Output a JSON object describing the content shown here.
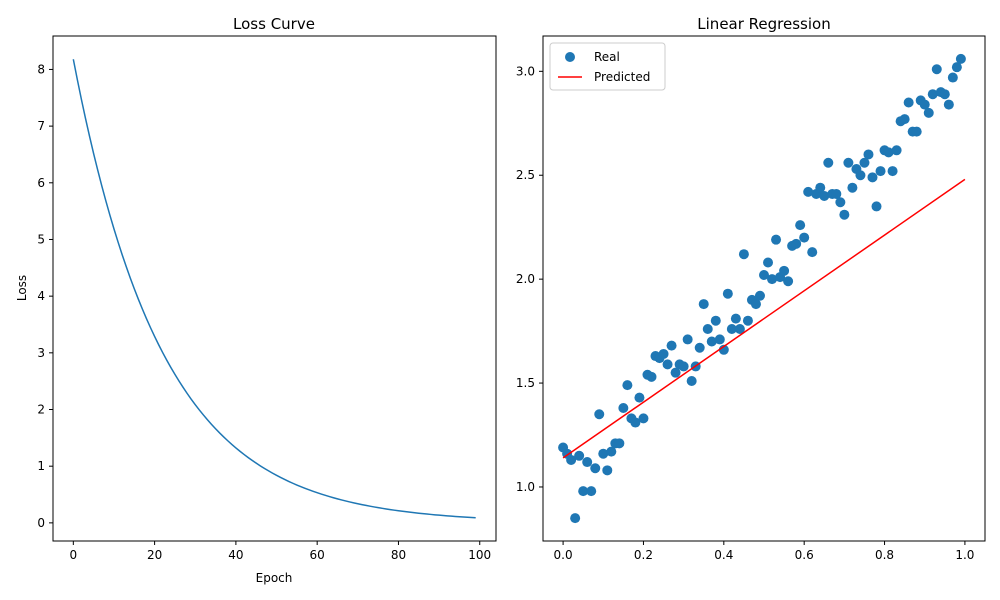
{
  "colors": {
    "series_blue": "#1f77b4",
    "predicted_red": "#ff0000",
    "axes": "#000000",
    "background": "#ffffff"
  },
  "chart_data": [
    {
      "type": "line",
      "title": "Loss Curve",
      "xlabel": "Epoch",
      "ylabel": "Loss",
      "xlim": [
        -5,
        104
      ],
      "ylim": [
        -0.32,
        8.59
      ],
      "xticks": [
        0,
        20,
        40,
        60,
        80,
        100
      ],
      "yticks": [
        0,
        1,
        2,
        3,
        4,
        5,
        6,
        7,
        8
      ],
      "grid": false,
      "curve": {
        "type": "exponential_decay",
        "x_start": 0,
        "x_end": 99,
        "y_start": 8.18,
        "y_end": 0.09
      },
      "series": [
        {
          "color": "#1f77b4",
          "x": [
            0,
            5,
            10,
            15,
            20,
            25,
            30,
            35,
            40,
            45,
            50,
            55,
            60,
            65,
            70,
            75,
            80,
            85,
            90,
            95,
            99
          ],
          "y": [
            8.18,
            6.36,
            4.96,
            3.86,
            3.0,
            2.34,
            1.82,
            1.42,
            1.1,
            0.86,
            0.67,
            0.52,
            0.4,
            0.32,
            0.25,
            0.19,
            0.15,
            0.12,
            0.09,
            0.07,
            0.09
          ]
        }
      ]
    },
    {
      "type": "scatter",
      "title": "Linear Regression",
      "xlabel": "",
      "ylabel": "",
      "xlim": [
        -0.05,
        1.05
      ],
      "ylim": [
        0.74,
        3.17
      ],
      "xticks": [
        0.0,
        0.2,
        0.4,
        0.6,
        0.8,
        1.0
      ],
      "yticks": [
        1.0,
        1.5,
        2.0,
        2.5,
        3.0
      ],
      "grid": false,
      "legend": {
        "placement": "top-left",
        "entries": [
          "Real",
          "Predicted"
        ]
      },
      "series": [
        {
          "name": "Real",
          "kind": "scatter",
          "color": "#1f77b4",
          "points": [
            [
              0.0,
              1.19
            ],
            [
              0.01,
              1.16
            ],
            [
              0.02,
              1.13
            ],
            [
              0.03,
              0.85
            ],
            [
              0.04,
              1.15
            ],
            [
              0.05,
              0.98
            ],
            [
              0.06,
              1.12
            ],
            [
              0.07,
              0.98
            ],
            [
              0.08,
              1.09
            ],
            [
              0.09,
              1.35
            ],
            [
              0.1,
              1.16
            ],
            [
              0.11,
              1.08
            ],
            [
              0.12,
              1.17
            ],
            [
              0.13,
              1.21
            ],
            [
              0.14,
              1.21
            ],
            [
              0.15,
              1.38
            ],
            [
              0.16,
              1.49
            ],
            [
              0.17,
              1.33
            ],
            [
              0.18,
              1.31
            ],
            [
              0.19,
              1.43
            ],
            [
              0.2,
              1.33
            ],
            [
              0.21,
              1.54
            ],
            [
              0.22,
              1.53
            ],
            [
              0.23,
              1.63
            ],
            [
              0.24,
              1.62
            ],
            [
              0.25,
              1.64
            ],
            [
              0.26,
              1.59
            ],
            [
              0.27,
              1.68
            ],
            [
              0.28,
              1.55
            ],
            [
              0.29,
              1.59
            ],
            [
              0.3,
              1.58
            ],
            [
              0.31,
              1.71
            ],
            [
              0.32,
              1.51
            ],
            [
              0.33,
              1.58
            ],
            [
              0.34,
              1.67
            ],
            [
              0.35,
              1.88
            ],
            [
              0.36,
              1.76
            ],
            [
              0.37,
              1.7
            ],
            [
              0.38,
              1.8
            ],
            [
              0.39,
              1.71
            ],
            [
              0.4,
              1.66
            ],
            [
              0.41,
              1.93
            ],
            [
              0.42,
              1.76
            ],
            [
              0.43,
              1.81
            ],
            [
              0.44,
              1.76
            ],
            [
              0.45,
              2.12
            ],
            [
              0.46,
              1.8
            ],
            [
              0.47,
              1.9
            ],
            [
              0.48,
              1.88
            ],
            [
              0.49,
              1.92
            ],
            [
              0.5,
              2.02
            ],
            [
              0.51,
              2.08
            ],
            [
              0.52,
              2.0
            ],
            [
              0.53,
              2.19
            ],
            [
              0.54,
              2.01
            ],
            [
              0.55,
              2.04
            ],
            [
              0.56,
              1.99
            ],
            [
              0.57,
              2.16
            ],
            [
              0.58,
              2.17
            ],
            [
              0.59,
              2.26
            ],
            [
              0.6,
              2.2
            ],
            [
              0.61,
              2.42
            ],
            [
              0.62,
              2.13
            ],
            [
              0.63,
              2.41
            ],
            [
              0.64,
              2.44
            ],
            [
              0.65,
              2.4
            ],
            [
              0.66,
              2.56
            ],
            [
              0.67,
              2.41
            ],
            [
              0.68,
              2.41
            ],
            [
              0.69,
              2.37
            ],
            [
              0.7,
              2.31
            ],
            [
              0.71,
              2.56
            ],
            [
              0.72,
              2.44
            ],
            [
              0.73,
              2.53
            ],
            [
              0.74,
              2.5
            ],
            [
              0.75,
              2.56
            ],
            [
              0.76,
              2.6
            ],
            [
              0.77,
              2.49
            ],
            [
              0.78,
              2.35
            ],
            [
              0.79,
              2.52
            ],
            [
              0.8,
              2.62
            ],
            [
              0.81,
              2.61
            ],
            [
              0.82,
              2.52
            ],
            [
              0.83,
              2.62
            ],
            [
              0.84,
              2.76
            ],
            [
              0.85,
              2.77
            ],
            [
              0.86,
              2.85
            ],
            [
              0.87,
              2.71
            ],
            [
              0.88,
              2.71
            ],
            [
              0.89,
              2.86
            ],
            [
              0.9,
              2.84
            ],
            [
              0.91,
              2.8
            ],
            [
              0.92,
              2.89
            ],
            [
              0.93,
              3.01
            ],
            [
              0.94,
              2.9
            ],
            [
              0.95,
              2.89
            ],
            [
              0.96,
              2.84
            ],
            [
              0.97,
              2.97
            ],
            [
              0.98,
              3.02
            ],
            [
              0.99,
              3.06
            ]
          ]
        },
        {
          "name": "Predicted",
          "kind": "line",
          "color": "#ff0000",
          "x": [
            0.0,
            1.0
          ],
          "y": [
            1.14,
            2.48
          ]
        }
      ]
    }
  ]
}
